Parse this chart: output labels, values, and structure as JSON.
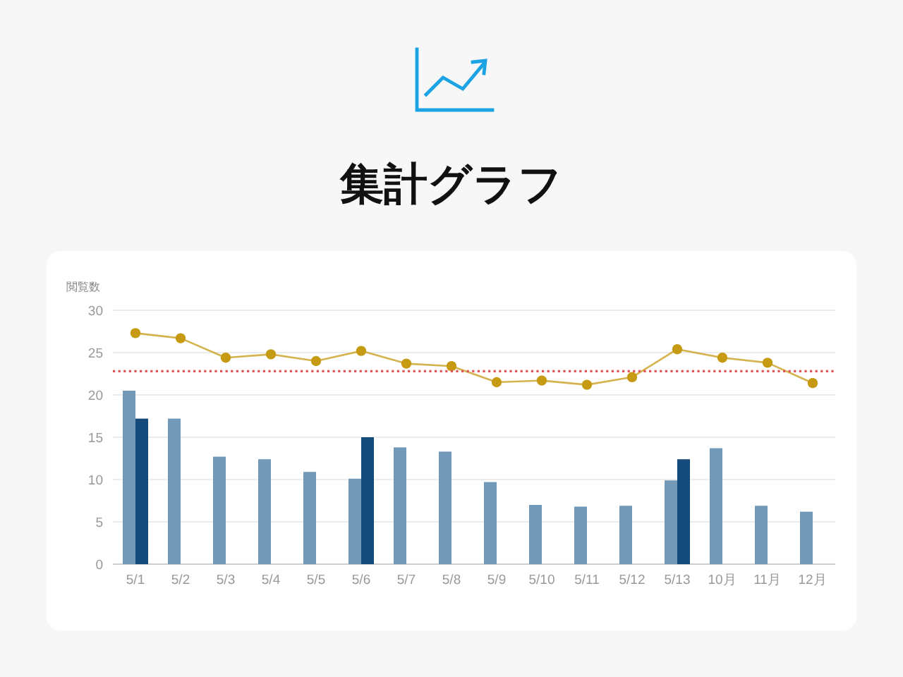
{
  "chart_data": {
    "type": "bar",
    "title": "集計グラフ",
    "ylabel": "閲覧数",
    "categories": [
      "5/1",
      "5/2",
      "5/3",
      "5/4",
      "5/5",
      "5/6",
      "5/7",
      "5/8",
      "5/9",
      "5/10",
      "5/11",
      "5/12",
      "5/13",
      "10月",
      "11月",
      "12月"
    ],
    "series": [
      {
        "color": "#7399b9",
        "values": [
          20.5,
          17.2,
          12.7,
          12.4,
          10.9,
          10.1,
          13.8,
          13.3,
          9.7,
          7.0,
          6.8,
          6.9,
          9.9,
          13.7,
          6.9,
          6.2
        ]
      },
      {
        "color": "#154b7b",
        "values": [
          17.2,
          null,
          null,
          null,
          null,
          15.0,
          null,
          null,
          null,
          null,
          null,
          null,
          12.4,
          null,
          null,
          null
        ]
      },
      {
        "type": "line",
        "color": "#c79a14",
        "values": [
          27.3,
          26.7,
          24.4,
          24.8,
          24.0,
          25.2,
          23.7,
          23.4,
          21.5,
          21.7,
          21.2,
          22.1,
          25.4,
          24.4,
          23.8,
          21.4
        ]
      }
    ],
    "ylim": [
      0,
      30
    ],
    "yticks": [
      0,
      5,
      10,
      15,
      20,
      25,
      30
    ],
    "grid": "y",
    "marker": "circle",
    "ref_lines": [
      {
        "axis": "y",
        "value": 22.8,
        "color": "#e0575a",
        "line_style": "dotted"
      }
    ]
  }
}
